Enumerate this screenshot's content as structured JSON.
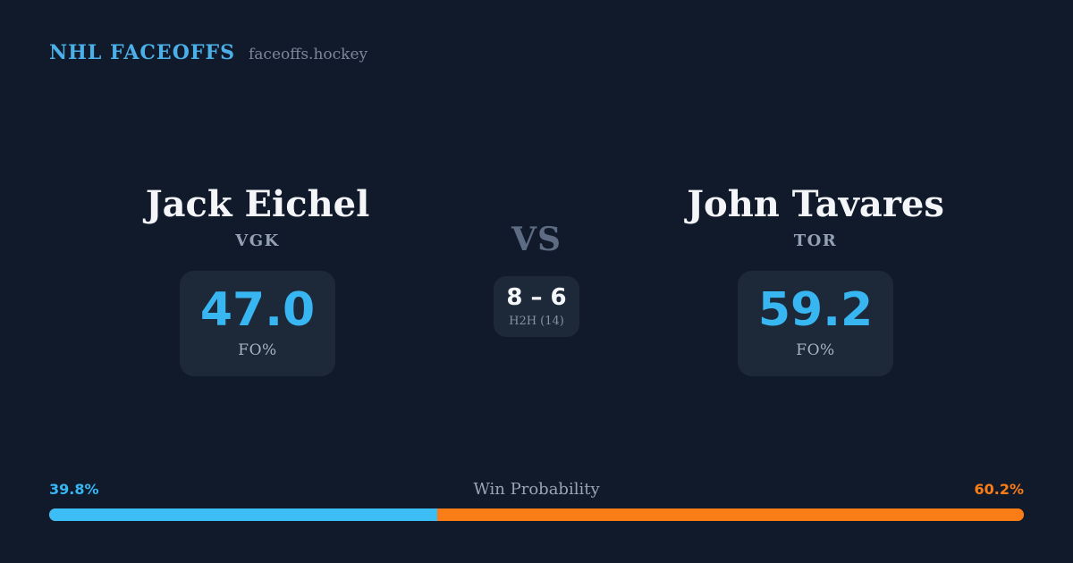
{
  "header": {
    "brand": "NHL FACEOFFS",
    "site": "faceoffs.hockey"
  },
  "matchup": {
    "vs_label": "VS",
    "h2h": {
      "score": "8 – 6",
      "label": "H2H (14)"
    },
    "players": [
      {
        "name": "Jack Eichel",
        "team": "VGK",
        "stat_value": "47.0",
        "stat_label": "FO%"
      },
      {
        "name": "John Tavares",
        "team": "TOR",
        "stat_value": "59.2",
        "stat_label": "FO%"
      }
    ]
  },
  "win_probability": {
    "title": "Win Probability",
    "left": {
      "value": "39.8%",
      "pct": 39.8
    },
    "right": {
      "value": "60.2%",
      "pct": 60.2
    }
  },
  "colors": {
    "background": "#111a2b",
    "card": "#1d2938",
    "accent_blue": "#38b6f2",
    "accent_orange": "#f97c16",
    "header_blue": "#4cb0e8"
  }
}
